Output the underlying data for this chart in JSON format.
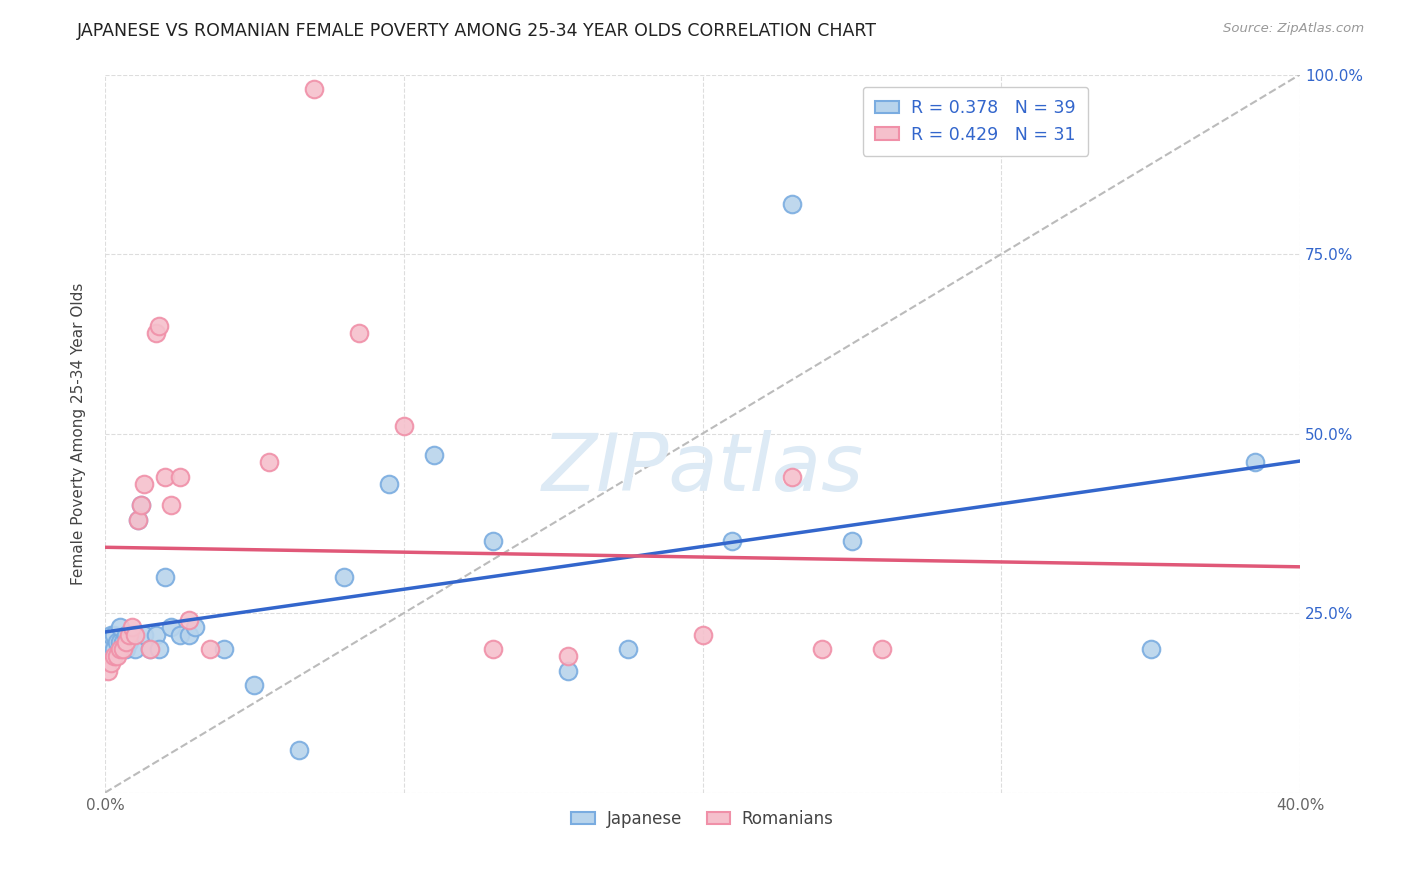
{
  "title": "JAPANESE VS ROMANIAN FEMALE POVERTY AMONG 25-34 YEAR OLDS CORRELATION CHART",
  "source": "Source: ZipAtlas.com",
  "ylabel": "Female Poverty Among 25-34 Year Olds",
  "xlim": [
    0.0,
    0.4
  ],
  "ylim": [
    0.0,
    1.0
  ],
  "xticks": [
    0.0,
    0.1,
    0.2,
    0.3,
    0.4
  ],
  "xtick_labels": [
    "0.0%",
    "",
    "",
    "",
    "40.0%"
  ],
  "yticks": [
    0.0,
    0.25,
    0.5,
    0.75,
    1.0
  ],
  "ytick_labels_right": [
    "",
    "25.0%",
    "50.0%",
    "75.0%",
    "100.0%"
  ],
  "japanese_color_face": "#b8d4ec",
  "japanese_color_edge": "#7aace0",
  "romanian_color_face": "#f5c0cc",
  "romanian_color_edge": "#f090a8",
  "trend_japanese_color": "#3366cc",
  "trend_romanian_color": "#e05878",
  "japanese_R": 0.378,
  "japanese_N": 39,
  "romanian_R": 0.429,
  "romanian_N": 31,
  "japanese_x": [
    0.001,
    0.002,
    0.003,
    0.003,
    0.004,
    0.005,
    0.005,
    0.006,
    0.006,
    0.007,
    0.007,
    0.008,
    0.009,
    0.01,
    0.011,
    0.012,
    0.013,
    0.015,
    0.017,
    0.018,
    0.02,
    0.022,
    0.025,
    0.028,
    0.03,
    0.04,
    0.05,
    0.065,
    0.08,
    0.095,
    0.11,
    0.13,
    0.155,
    0.175,
    0.21,
    0.23,
    0.25,
    0.35,
    0.385
  ],
  "japanese_y": [
    0.2,
    0.22,
    0.2,
    0.22,
    0.21,
    0.21,
    0.23,
    0.2,
    0.21,
    0.22,
    0.2,
    0.21,
    0.22,
    0.2,
    0.38,
    0.4,
    0.22,
    0.2,
    0.22,
    0.2,
    0.3,
    0.23,
    0.22,
    0.22,
    0.23,
    0.2,
    0.15,
    0.06,
    0.3,
    0.43,
    0.47,
    0.35,
    0.17,
    0.2,
    0.35,
    0.82,
    0.35,
    0.2,
    0.46
  ],
  "romanian_x": [
    0.001,
    0.002,
    0.003,
    0.004,
    0.005,
    0.006,
    0.007,
    0.008,
    0.009,
    0.01,
    0.011,
    0.012,
    0.013,
    0.015,
    0.017,
    0.018,
    0.02,
    0.022,
    0.025,
    0.028,
    0.035,
    0.055,
    0.07,
    0.085,
    0.1,
    0.13,
    0.155,
    0.2,
    0.23,
    0.24,
    0.26
  ],
  "romanian_y": [
    0.17,
    0.18,
    0.19,
    0.19,
    0.2,
    0.2,
    0.21,
    0.22,
    0.23,
    0.22,
    0.38,
    0.4,
    0.43,
    0.2,
    0.64,
    0.65,
    0.44,
    0.4,
    0.44,
    0.24,
    0.2,
    0.46,
    0.98,
    0.64,
    0.51,
    0.2,
    0.19,
    0.22,
    0.44,
    0.2,
    0.2
  ],
  "watermark_text": "ZIPatlas",
  "background_color": "#ffffff",
  "grid_color": "#dddddd",
  "grid_style": "--"
}
